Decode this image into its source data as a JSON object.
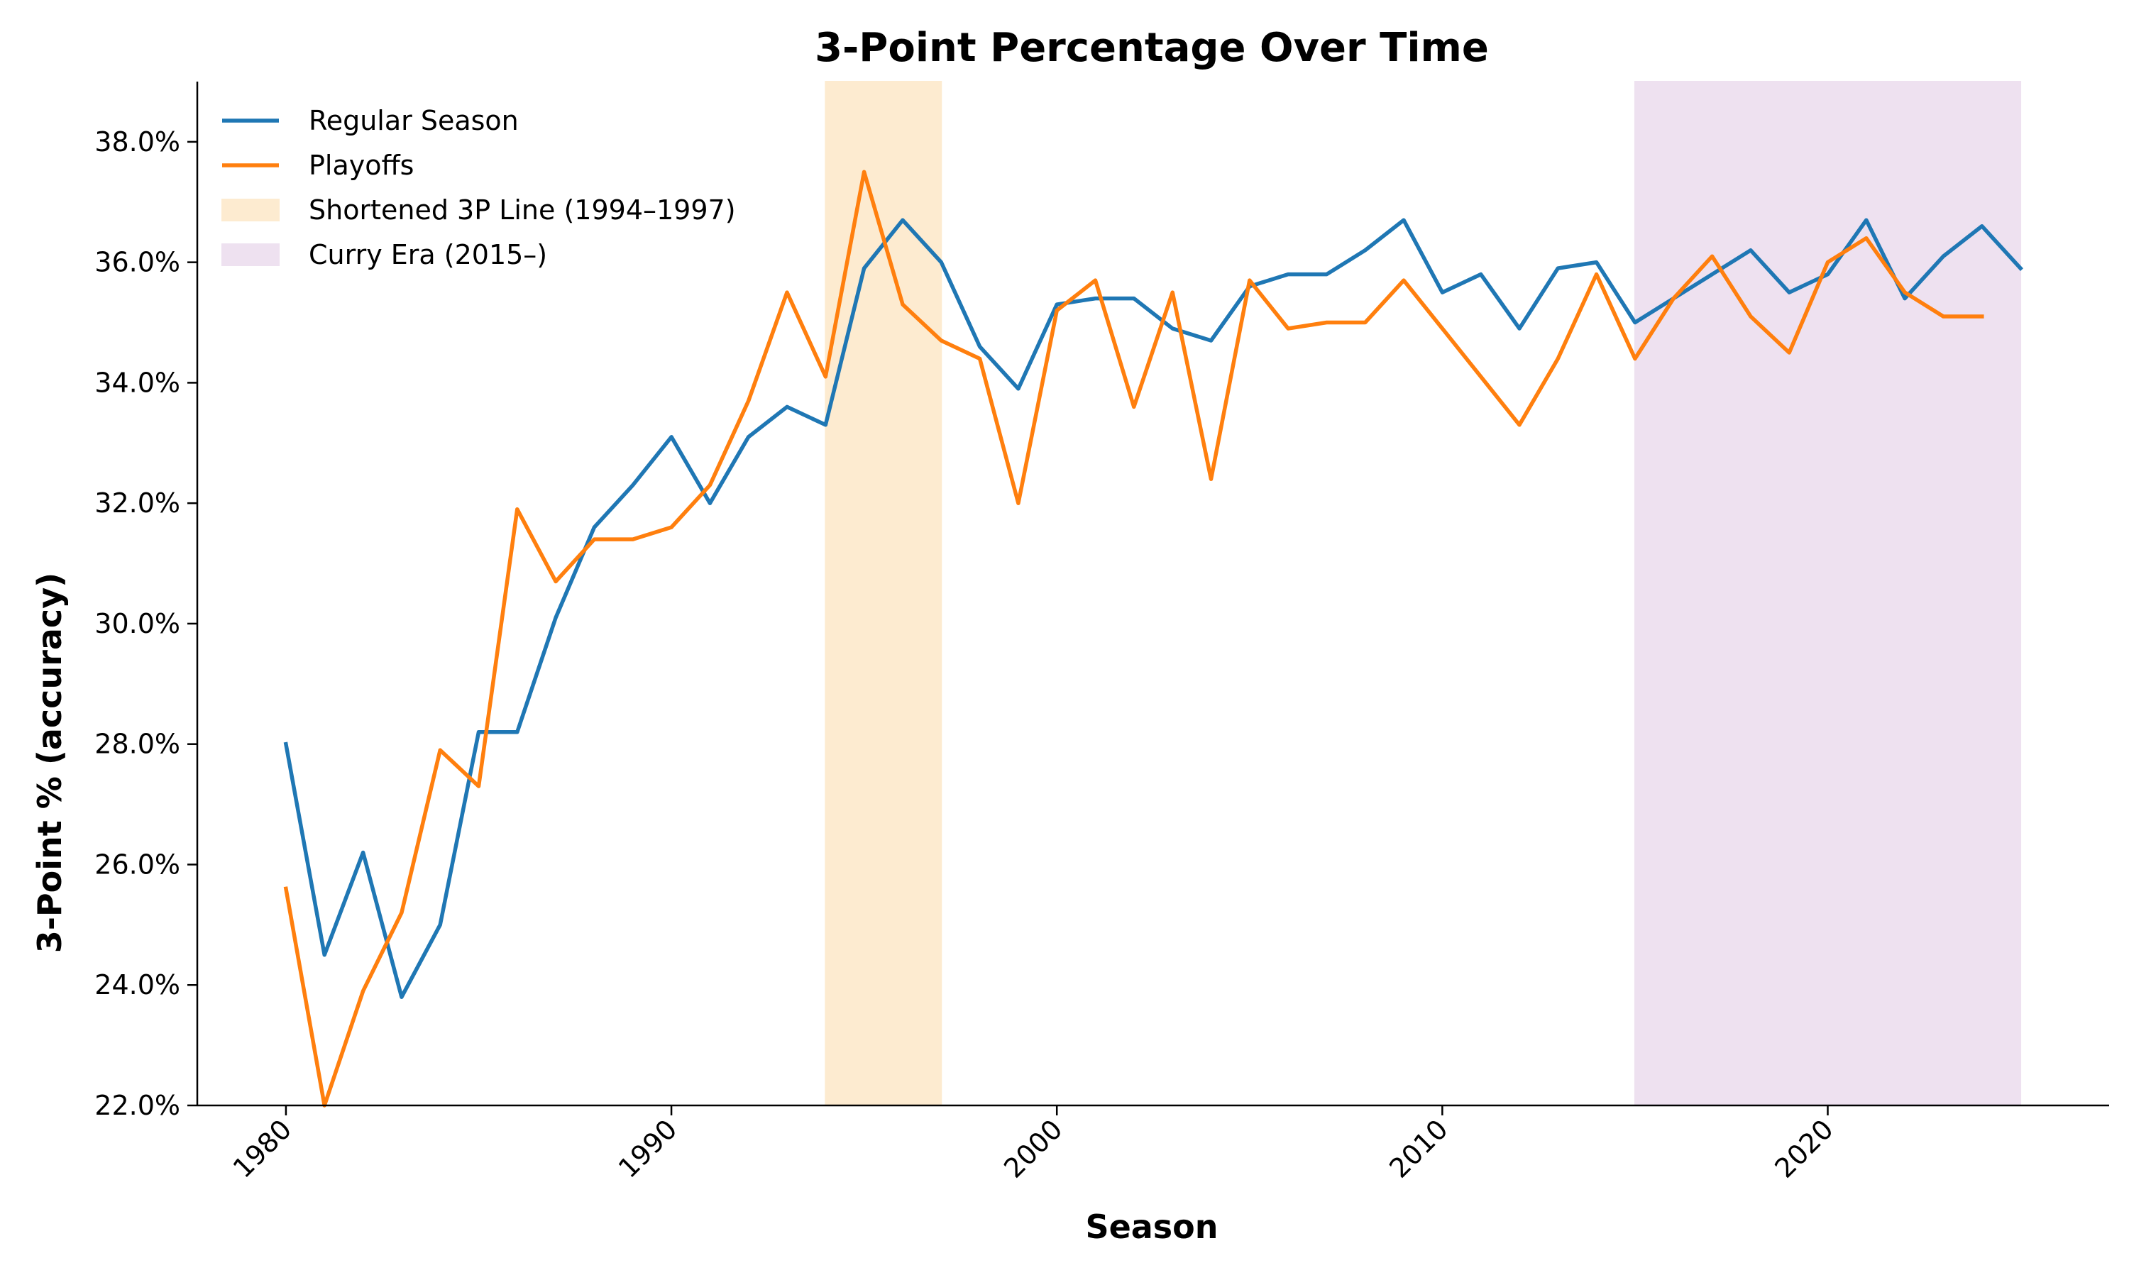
{
  "chart_data": {
    "type": "line",
    "title": "3-Point Percentage Over Time",
    "xlabel": "Season",
    "ylabel": "3-Point % (accuracy)",
    "xlim": [
      1977.7,
      2027.3
    ],
    "ylim": [
      22.0,
      39.0
    ],
    "x_ticks": [
      1980,
      1990,
      2000,
      2010,
      2020
    ],
    "y_ticks": [
      22.0,
      24.0,
      26.0,
      28.0,
      30.0,
      32.0,
      34.0,
      36.0,
      38.0
    ],
    "y_tick_format": "percent_1dp",
    "grid": false,
    "legend_position": "top-left",
    "series": [
      {
        "name": "Regular Season",
        "color": "#1f77b4",
        "x": [
          1980,
          1981,
          1982,
          1983,
          1984,
          1985,
          1986,
          1987,
          1988,
          1989,
          1990,
          1991,
          1992,
          1993,
          1994,
          1995,
          1996,
          1997,
          1998,
          1999,
          2000,
          2001,
          2002,
          2003,
          2004,
          2005,
          2006,
          2007,
          2008,
          2009,
          2010,
          2011,
          2012,
          2013,
          2014,
          2015,
          2016,
          2017,
          2018,
          2019,
          2020,
          2021,
          2022,
          2023,
          2024,
          2025
        ],
        "values": [
          28.0,
          24.5,
          26.2,
          23.8,
          25.0,
          28.2,
          28.2,
          30.1,
          31.6,
          32.3,
          33.1,
          32.0,
          33.1,
          33.6,
          33.3,
          35.9,
          36.7,
          36.0,
          34.6,
          33.9,
          35.3,
          35.4,
          35.4,
          34.9,
          34.7,
          35.6,
          35.8,
          35.8,
          36.2,
          36.7,
          35.5,
          35.8,
          34.9,
          35.9,
          36.0,
          35.0,
          35.4,
          35.8,
          36.2,
          35.5,
          35.8,
          36.7,
          35.4,
          36.1,
          36.6,
          35.9
        ]
      },
      {
        "name": "Playoffs",
        "color": "#ff7f0e",
        "x": [
          1980,
          1981,
          1982,
          1983,
          1984,
          1985,
          1986,
          1987,
          1988,
          1989,
          1990,
          1991,
          1992,
          1993,
          1994,
          1995,
          1996,
          1997,
          1998,
          1999,
          2000,
          2001,
          2002,
          2003,
          2004,
          2005,
          2006,
          2007,
          2008,
          2009,
          2010,
          2011,
          2012,
          2013,
          2014,
          2015,
          2016,
          2017,
          2018,
          2019,
          2020,
          2021,
          2022,
          2023,
          2024
        ],
        "values": [
          25.6,
          22.0,
          23.9,
          25.2,
          27.9,
          27.3,
          31.9,
          30.7,
          31.4,
          31.4,
          31.6,
          32.3,
          33.7,
          35.5,
          34.1,
          37.5,
          35.3,
          34.7,
          34.4,
          32.0,
          35.2,
          35.7,
          33.6,
          35.5,
          32.4,
          35.7,
          34.9,
          35.0,
          35.0,
          35.7,
          34.9,
          34.1,
          33.3,
          34.4,
          35.8,
          34.4,
          35.4,
          36.1,
          35.1,
          34.5,
          36.0,
          36.4,
          35.5,
          35.1,
          35.1
        ]
      }
    ],
    "shaded_regions": [
      {
        "name": "Shortened 3P Line (1994–1997)",
        "x_start": 1994,
        "x_end": 1997,
        "color": "#fdebd0"
      },
      {
        "name": "Curry Era (2015–)",
        "x_start": 2015,
        "x_end": 2025,
        "color": "#eee1f0"
      }
    ]
  }
}
